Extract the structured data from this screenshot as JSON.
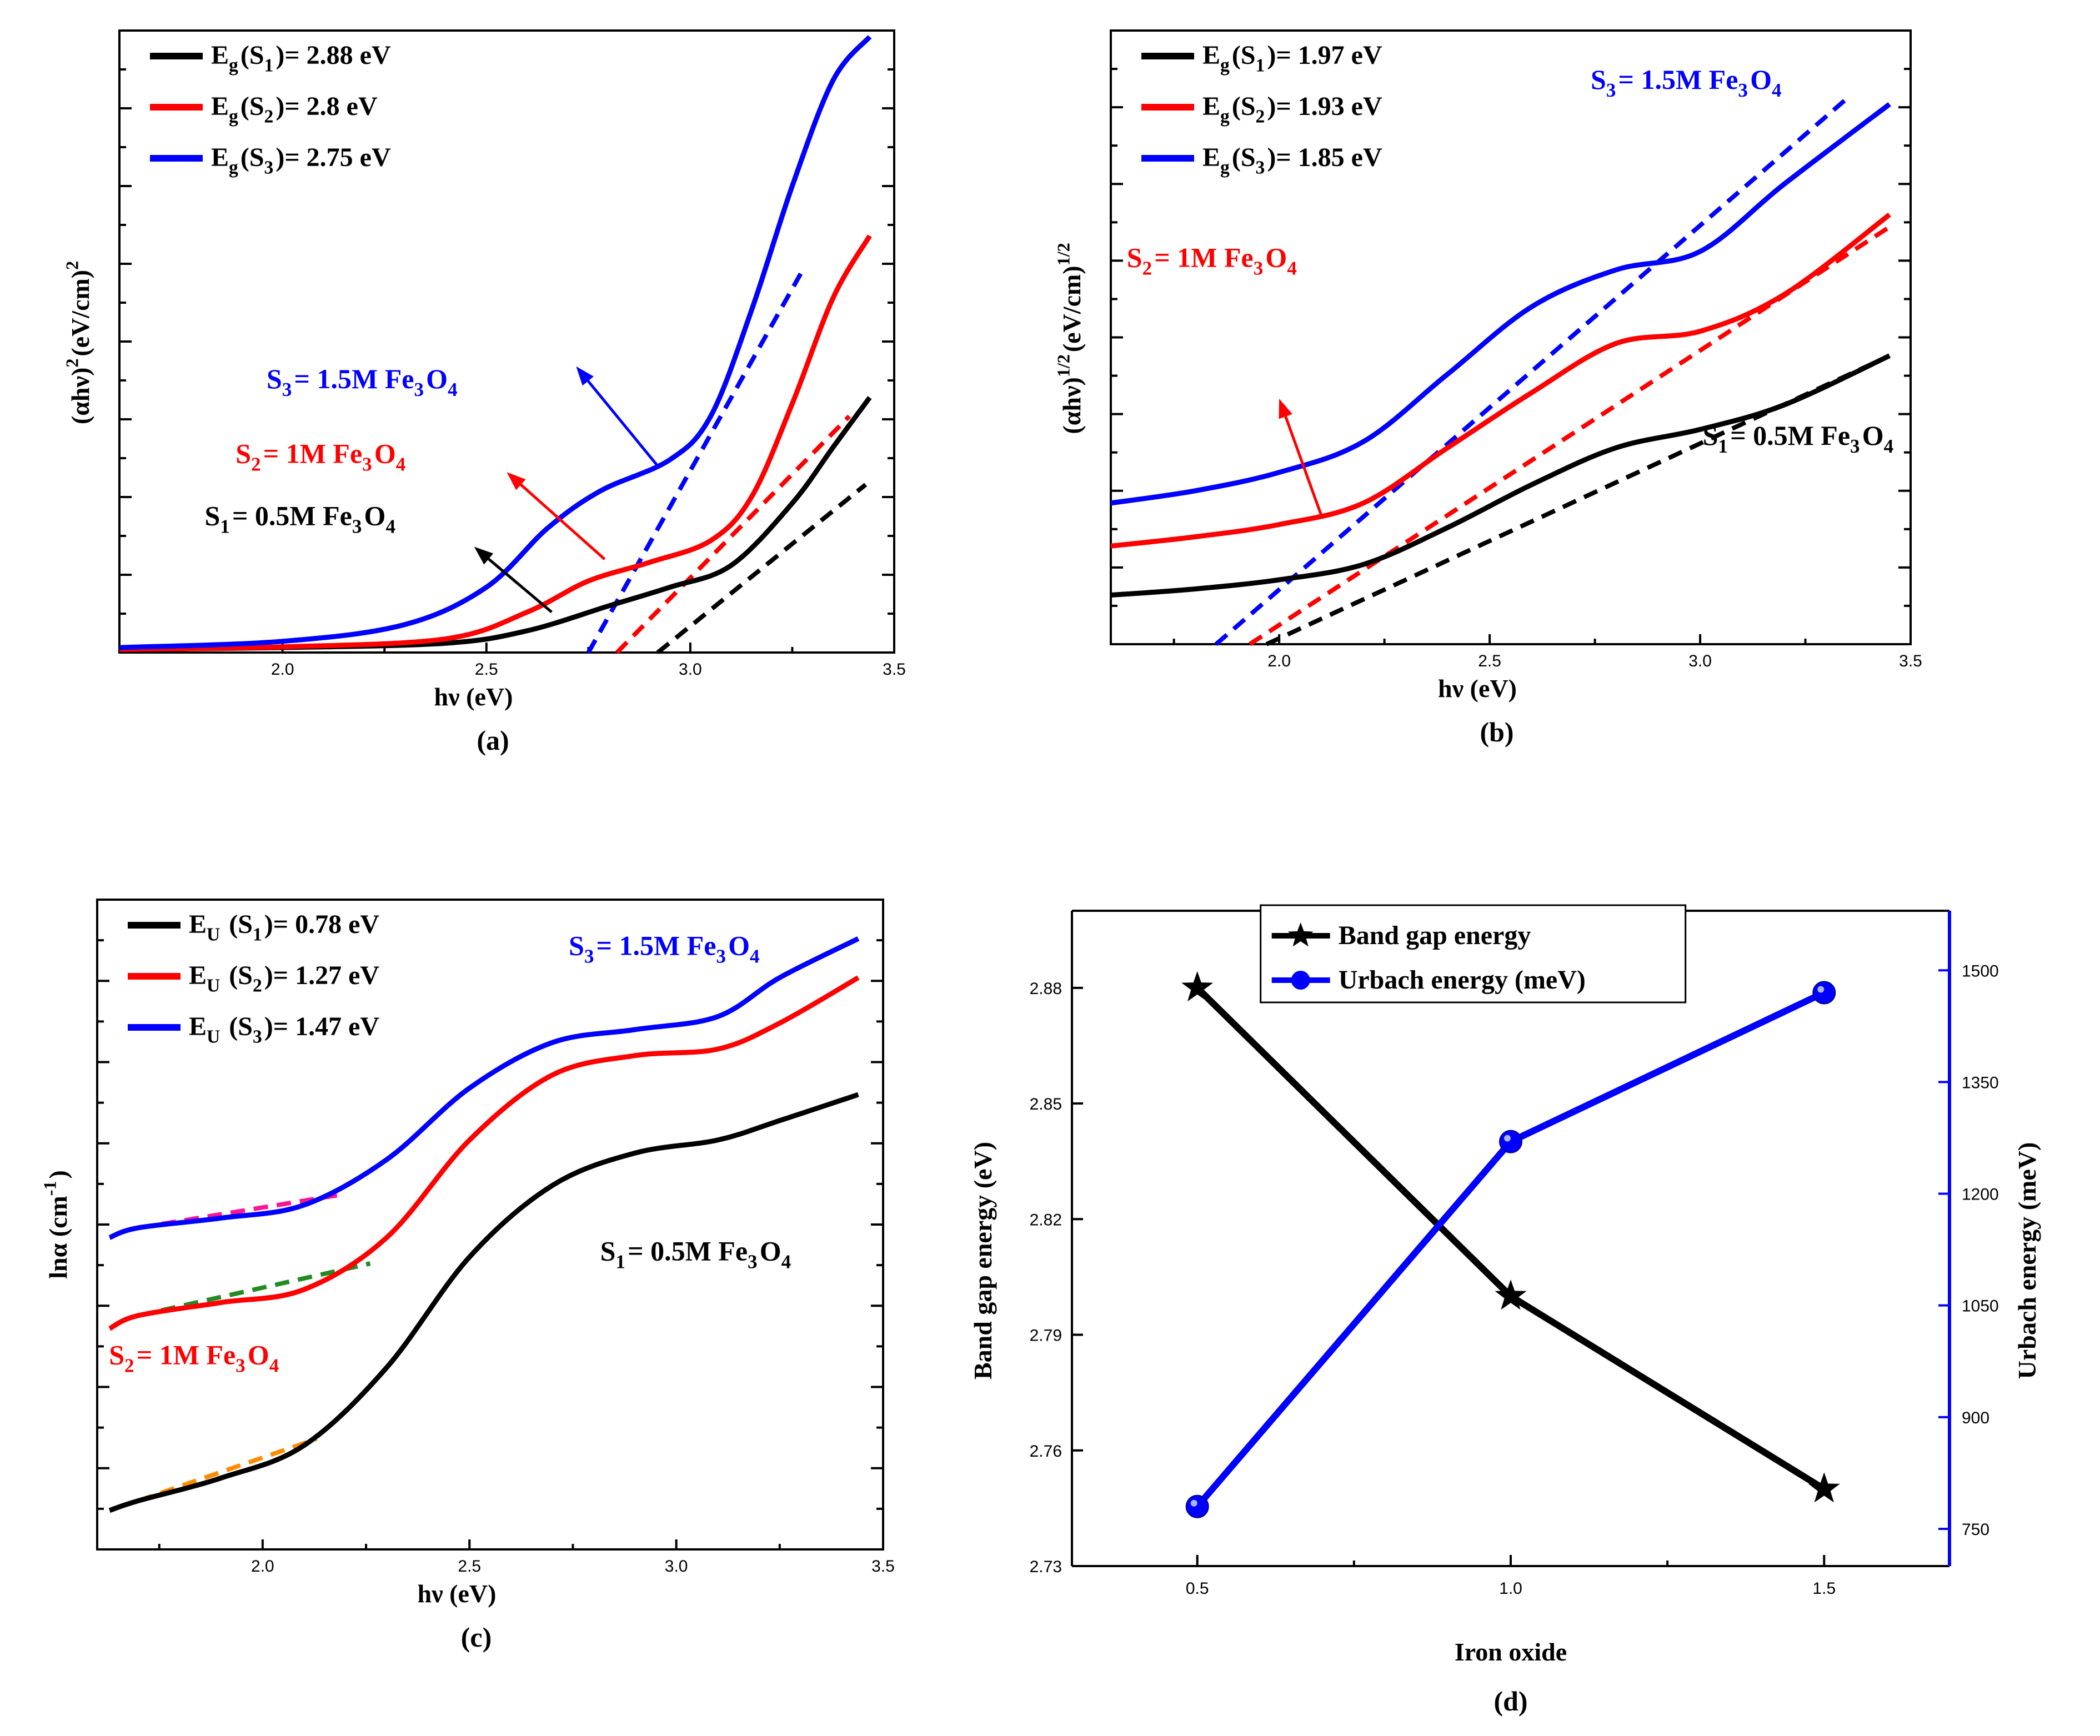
{
  "chart_data": [
    {
      "panel": "(a)",
      "type": "line",
      "xlabel": "hν (eV)",
      "ylabel": "(αhν)²(eV/cm)²",
      "xlim": [
        1.6,
        3.5
      ],
      "ylim": [
        0,
        100
      ],
      "x_ticks": [
        "2.0",
        "2.5",
        "3.0",
        "3.5"
      ],
      "legend": [
        "Eg(S1)= 2.88 eV",
        "Eg(S2)= 2.8 eV",
        "Eg(S3)= 2.75 eV"
      ],
      "annotations": [
        "S3= 1.5M Fe3O4",
        "S2= 1M Fe3O4",
        "S1= 0.5M Fe3O4"
      ],
      "series": [
        {
          "name": "S1",
          "color": "#000000",
          "x": [
            1.6,
            2.0,
            2.4,
            2.6,
            2.8,
            2.95,
            3.1,
            3.25,
            3.35,
            3.44
          ],
          "y": [
            0.5,
            0.8,
            1.5,
            3.5,
            7.5,
            10.5,
            14,
            24,
            33,
            41
          ]
        },
        {
          "name": "S2",
          "color": "#ff0000",
          "x": [
            1.6,
            2.0,
            2.4,
            2.6,
            2.75,
            2.9,
            3.05,
            3.15,
            3.25,
            3.35,
            3.44
          ],
          "y": [
            0.5,
            0.9,
            2.2,
            6.5,
            11.5,
            14.5,
            18,
            25,
            40,
            57,
            67
          ]
        },
        {
          "name": "S3",
          "color": "#0000ff",
          "x": [
            1.6,
            2.0,
            2.3,
            2.5,
            2.65,
            2.78,
            2.95,
            3.05,
            3.15,
            3.25,
            3.35,
            3.44
          ],
          "y": [
            0.8,
            1.8,
            4.5,
            10.5,
            20,
            26,
            31,
            38,
            55,
            75,
            92,
            99
          ]
        }
      ],
      "fits": [
        {
          "name": "S1 fit",
          "color": "#000000",
          "x": [
            2.92,
            3.43
          ],
          "y": [
            0,
            27
          ]
        },
        {
          "name": "S2 fit",
          "color": "#ff0000",
          "x": [
            2.82,
            3.39
          ],
          "y": [
            0,
            38
          ]
        },
        {
          "name": "S3 fit",
          "color": "#0000ff",
          "x": [
            2.75,
            3.28
          ],
          "y": [
            0,
            62
          ]
        }
      ]
    },
    {
      "panel": "(b)",
      "type": "line",
      "xlabel": "hν (eV)",
      "ylabel": "(αhν)^1/2(eV/cm)^1/2",
      "xlim": [
        1.6,
        3.5
      ],
      "ylim": [
        0,
        100
      ],
      "x_ticks": [
        "2.0",
        "2.5",
        "3.0",
        "3.5"
      ],
      "legend": [
        "Eg(S1)= 1.97 eV",
        "Eg(S2)= 1.93 eV",
        "Eg(S3)= 1.85 eV"
      ],
      "annotations": [
        "S3= 1.5M Fe3O4",
        "S2= 1M Fe3O4",
        "S1= 0.5M Fe3O4"
      ],
      "series": [
        {
          "name": "S1",
          "color": "#000000",
          "x": [
            1.6,
            1.8,
            2.0,
            2.2,
            2.4,
            2.6,
            2.8,
            3.0,
            3.2,
            3.45
          ],
          "y": [
            8,
            9,
            10.5,
            13,
            19,
            26,
            32,
            35,
            39,
            47
          ]
        },
        {
          "name": "S2",
          "color": "#ff0000",
          "x": [
            1.6,
            1.8,
            2.0,
            2.2,
            2.4,
            2.6,
            2.8,
            3.0,
            3.2,
            3.45
          ],
          "y": [
            16,
            17.5,
            19.5,
            23,
            32,
            41,
            49,
            51,
            57,
            70
          ]
        },
        {
          "name": "S3",
          "color": "#0000ff",
          "x": [
            1.6,
            1.8,
            2.0,
            2.2,
            2.4,
            2.6,
            2.8,
            3.0,
            3.2,
            3.45
          ],
          "y": [
            23,
            25,
            28,
            33,
            44,
            55,
            61,
            64,
            75,
            88
          ]
        }
      ],
      "fits": [
        {
          "name": "S1 fit",
          "color": "#000000",
          "x": [
            1.97,
            3.45
          ],
          "y": [
            0,
            47
          ]
        },
        {
          "name": "S2 fit",
          "color": "#ff0000",
          "x": [
            1.93,
            3.45
          ],
          "y": [
            0,
            68
          ]
        },
        {
          "name": "S3 fit",
          "color": "#0000ff",
          "x": [
            1.85,
            3.35
          ],
          "y": [
            0,
            89
          ]
        }
      ]
    },
    {
      "panel": "(c)",
      "type": "line",
      "xlabel": "hν (eV)",
      "ylabel": "lnα (cm⁻¹)",
      "xlim": [
        1.6,
        3.5
      ],
      "ylim": [
        0,
        100
      ],
      "x_ticks": [
        "2.0",
        "2.5",
        "3.0",
        "3.5"
      ],
      "legend": [
        "EU (S1)= 0.78 eV",
        "EU (S2)= 1.27 eV",
        "EU (S3)= 1.47 eV"
      ],
      "annotations": [
        "S3= 1.5M Fe3O4",
        "S1= 0.5M Fe3O4",
        "S2= 1M Fe3O4"
      ],
      "series": [
        {
          "name": "S1",
          "color": "#000000",
          "x": [
            1.63,
            1.7,
            1.9,
            2.1,
            2.3,
            2.5,
            2.7,
            2.9,
            3.1,
            3.25,
            3.44
          ],
          "y": [
            6,
            7.5,
            11,
            16,
            28,
            45,
            56,
            61,
            63,
            66,
            70
          ]
        },
        {
          "name": "S2",
          "color": "#ff0000",
          "x": [
            1.63,
            1.7,
            1.9,
            2.1,
            2.3,
            2.5,
            2.7,
            2.9,
            3.1,
            3.25,
            3.44
          ],
          "y": [
            34,
            36,
            38,
            40,
            48,
            63,
            73,
            76,
            77,
            81,
            88
          ]
        },
        {
          "name": "S3",
          "color": "#0000ff",
          "x": [
            1.63,
            1.7,
            1.9,
            2.1,
            2.3,
            2.5,
            2.7,
            2.9,
            3.1,
            3.25,
            3.44
          ],
          "y": [
            48,
            49.5,
            51,
            53,
            60,
            71,
            78,
            80,
            82,
            88,
            94
          ]
        }
      ],
      "fits": [
        {
          "name": "S1 fit",
          "color": "#ff8c00",
          "x": [
            1.7,
            2.13
          ],
          "y": [
            7.5,
            17
          ]
        },
        {
          "name": "S2 fit",
          "color": "#228b22",
          "x": [
            1.7,
            2.26
          ],
          "y": [
            36,
            44
          ]
        },
        {
          "name": "S3 fit",
          "color": "#ff1493",
          "x": [
            1.7,
            2.18
          ],
          "y": [
            49.5,
            54.5
          ]
        }
      ]
    },
    {
      "panel": "(d)",
      "type": "line",
      "xlabel": "Iron oxide",
      "ylabel_left": "Band gap energy (eV)",
      "ylabel_right": "Urbach energy (meV)",
      "xlim": [
        0.3,
        1.7
      ],
      "ylim_left": [
        2.73,
        2.9
      ],
      "ylim_right": [
        700,
        1580
      ],
      "x_ticks": [
        "0.5",
        "1.0",
        "1.5"
      ],
      "y_ticks_left": [
        "2.73",
        "2.76",
        "2.79",
        "2.82",
        "2.85",
        "2.88"
      ],
      "y_ticks_right": [
        "750",
        "900",
        "1050",
        "1200",
        "1350",
        "1500"
      ],
      "legend": [
        "Band gap energy",
        "Urbach energy (meV)"
      ],
      "series": [
        {
          "name": "Band gap energy",
          "color": "#000000",
          "axis": "left",
          "marker": "star",
          "x": [
            0.5,
            1.0,
            1.5
          ],
          "y": [
            2.88,
            2.8,
            2.75
          ]
        },
        {
          "name": "Urbach energy (meV)",
          "color": "#0000ff",
          "axis": "right",
          "marker": "circle",
          "x": [
            0.5,
            1.0,
            1.5
          ],
          "y": [
            780,
            1270,
            1470
          ]
        }
      ]
    }
  ]
}
